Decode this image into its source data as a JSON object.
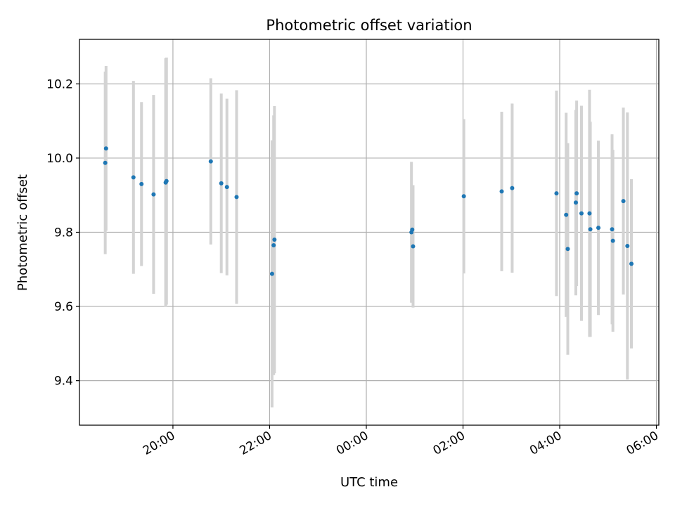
{
  "chart_data": {
    "type": "scatter",
    "title": "Photometric offset variation",
    "xlabel": "UTC time",
    "ylabel": "Photometric offset",
    "x_axis_type": "time",
    "x_range": [
      "18:04",
      "06:03"
    ],
    "ylim": [
      9.28,
      10.32
    ],
    "grid": true,
    "x_ticks": [
      "20:00",
      "22:00",
      "00:00",
      "02:00",
      "04:00",
      "06:00"
    ],
    "y_ticks": [
      "9.4",
      "9.6",
      "9.8",
      "10.0",
      "10.2"
    ],
    "point_color": "#1f77b4",
    "errorbar_color": "#d3d3d3",
    "points": [
      {
        "t": "18:36",
        "y": 9.987,
        "err": 0.246
      },
      {
        "t": "18:37",
        "y": 10.026,
        "err": 0.222
      },
      {
        "t": "19:11",
        "y": 9.948,
        "err": 0.26
      },
      {
        "t": "19:21",
        "y": 9.93,
        "err": 0.221
      },
      {
        "t": "19:36",
        "y": 9.902,
        "err": 0.268
      },
      {
        "t": "19:51",
        "y": 9.934,
        "err": 0.335
      },
      {
        "t": "19:52",
        "y": 9.938,
        "err": 0.333
      },
      {
        "t": "20:47",
        "y": 9.991,
        "err": 0.224
      },
      {
        "t": "21:00",
        "y": 9.932,
        "err": 0.242
      },
      {
        "t": "21:07",
        "y": 9.922,
        "err": 0.238
      },
      {
        "t": "21:19",
        "y": 9.895,
        "err": 0.288
      },
      {
        "t": "22:03",
        "y": 9.688,
        "err": 0.36
      },
      {
        "t": "22:05",
        "y": 9.765,
        "err": 0.35
      },
      {
        "t": "22:06",
        "y": 9.78,
        "err": 0.36
      },
      {
        "t": "00:56",
        "y": 9.8,
        "err": 0.19
      },
      {
        "t": "00:57",
        "y": 9.807,
        "err": 0.12
      },
      {
        "t": "00:58",
        "y": 9.762,
        "err": 0.165
      },
      {
        "t": "02:01",
        "y": 9.897,
        "err": 0.208
      },
      {
        "t": "02:48",
        "y": 9.91,
        "err": 0.215
      },
      {
        "t": "03:01",
        "y": 9.919,
        "err": 0.228
      },
      {
        "t": "03:56",
        "y": 9.905,
        "err": 0.277
      },
      {
        "t": "04:08",
        "y": 9.847,
        "err": 0.275
      },
      {
        "t": "04:10",
        "y": 9.755,
        "err": 0.285
      },
      {
        "t": "04:20",
        "y": 9.88,
        "err": 0.25
      },
      {
        "t": "04:21",
        "y": 9.905,
        "err": 0.25
      },
      {
        "t": "04:27",
        "y": 9.851,
        "err": 0.29
      },
      {
        "t": "04:37",
        "y": 9.851,
        "err": 0.333
      },
      {
        "t": "04:38",
        "y": 9.808,
        "err": 0.29
      },
      {
        "t": "04:48",
        "y": 9.812,
        "err": 0.235
      },
      {
        "t": "05:05",
        "y": 9.808,
        "err": 0.256
      },
      {
        "t": "05:06",
        "y": 9.777,
        "err": 0.245
      },
      {
        "t": "05:19",
        "y": 9.884,
        "err": 0.252
      },
      {
        "t": "05:24",
        "y": 9.763,
        "err": 0.36
      },
      {
        "t": "05:29",
        "y": 9.715,
        "err": 0.228
      }
    ]
  }
}
